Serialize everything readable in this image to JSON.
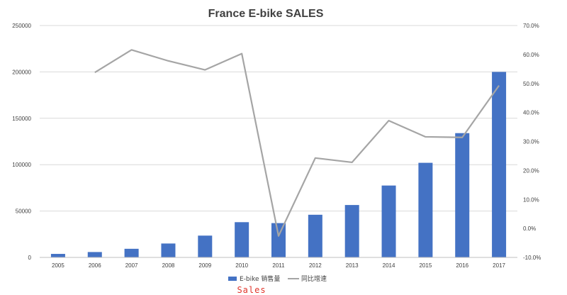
{
  "chart_data": {
    "type": "bar",
    "title": "France E-bike SALES",
    "categories": [
      "2005",
      "2006",
      "2007",
      "2008",
      "2009",
      "2010",
      "2011",
      "2012",
      "2013",
      "2014",
      "2015",
      "2016",
      "2017"
    ],
    "series": [
      {
        "name": "E-bike 销售量",
        "type": "bar",
        "axis": "left",
        "color": "#4472C4",
        "values": [
          3800,
          5800,
          9300,
          15000,
          23500,
          38000,
          37000,
          46000,
          56500,
          77500,
          102000,
          134000,
          200000
        ]
      },
      {
        "name": "同比增速",
        "type": "line",
        "axis": "right",
        "color": "#A5A5A5",
        "values": [
          null,
          0.538,
          0.616,
          0.578,
          0.547,
          0.603,
          -0.026,
          0.243,
          0.228,
          0.372,
          0.316,
          0.314,
          0.493
        ]
      }
    ],
    "y_left": {
      "ylim": [
        0,
        250000
      ],
      "ticks": [
        0,
        50000,
        100000,
        150000,
        200000,
        250000
      ],
      "tick_labels": [
        "0",
        "50000",
        "100000",
        "150000",
        "200000",
        "250000"
      ]
    },
    "y_right": {
      "ylim": [
        -0.1,
        0.7
      ],
      "ticks": [
        -0.1,
        0.0,
        0.1,
        0.2,
        0.3,
        0.4,
        0.5,
        0.6,
        0.7
      ],
      "tick_labels": [
        "-10.0%",
        "0.0%",
        "10.0%",
        "20.0%",
        "30.0%",
        "40.0%",
        "50.0%",
        "60.0%",
        "70.0%"
      ]
    },
    "grid": true,
    "legend_position": "bottom"
  },
  "caption": "Sales"
}
